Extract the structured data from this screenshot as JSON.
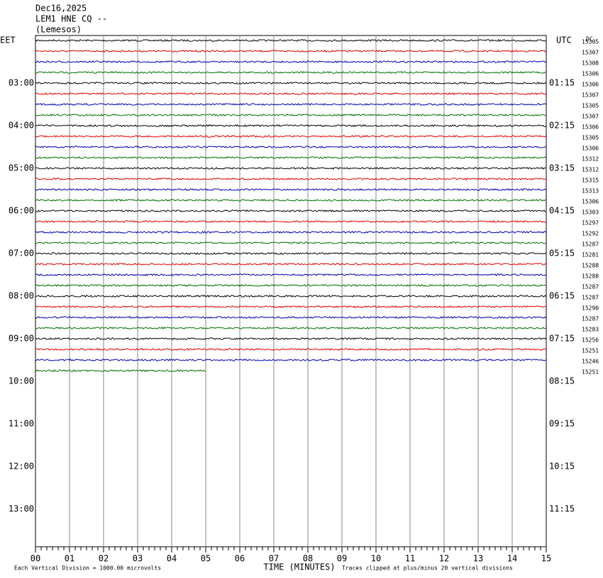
{
  "header": {
    "date": "Dec16,2025",
    "station": "LEM1 HNE CQ --",
    "location": "(Lemesos)"
  },
  "left_axis": {
    "title": "EET",
    "labels": [
      "03:00",
      "04:00",
      "05:00",
      "06:00",
      "07:00",
      "08:00",
      "09:00",
      "10:00",
      "11:00",
      "12:00",
      "13:00"
    ]
  },
  "right_axis": {
    "title": "UTC",
    "labels": [
      "01:15",
      "02:15",
      "03:15",
      "04:15",
      "05:15",
      "06:15",
      "07:15",
      "08:15",
      "09:15",
      "10:15",
      "11:15"
    ]
  },
  "dc": {
    "title": "DC",
    "values": [
      "15305",
      "15307",
      "15308",
      "15306",
      "15306",
      "15307",
      "15305",
      "15307",
      "15306",
      "15305",
      "15306",
      "15312",
      "15312",
      "15315",
      "15313",
      "15306",
      "15303",
      "15297",
      "15292",
      "15287",
      "15281",
      "15288",
      "15288",
      "15287",
      "15287",
      "15290",
      "15287",
      "15283",
      "15256",
      "15251",
      "15246",
      "15251"
    ]
  },
  "x_axis": {
    "title": "TIME (MINUTES)",
    "labels": [
      "00",
      "01",
      "02",
      "03",
      "04",
      "05",
      "06",
      "07",
      "08",
      "09",
      "10",
      "11",
      "12",
      "13",
      "14",
      "15"
    ]
  },
  "footer": {
    "scale_note": "Each Vertical Division = 1000.00 microvolts",
    "clip_note": "Traces clipped at plus/minus 20 vertical divisions"
  },
  "traces": {
    "colors": [
      "#000000",
      "#e00000",
      "#0000b0",
      "#007000"
    ],
    "last_trace_minutes": 5
  }
}
